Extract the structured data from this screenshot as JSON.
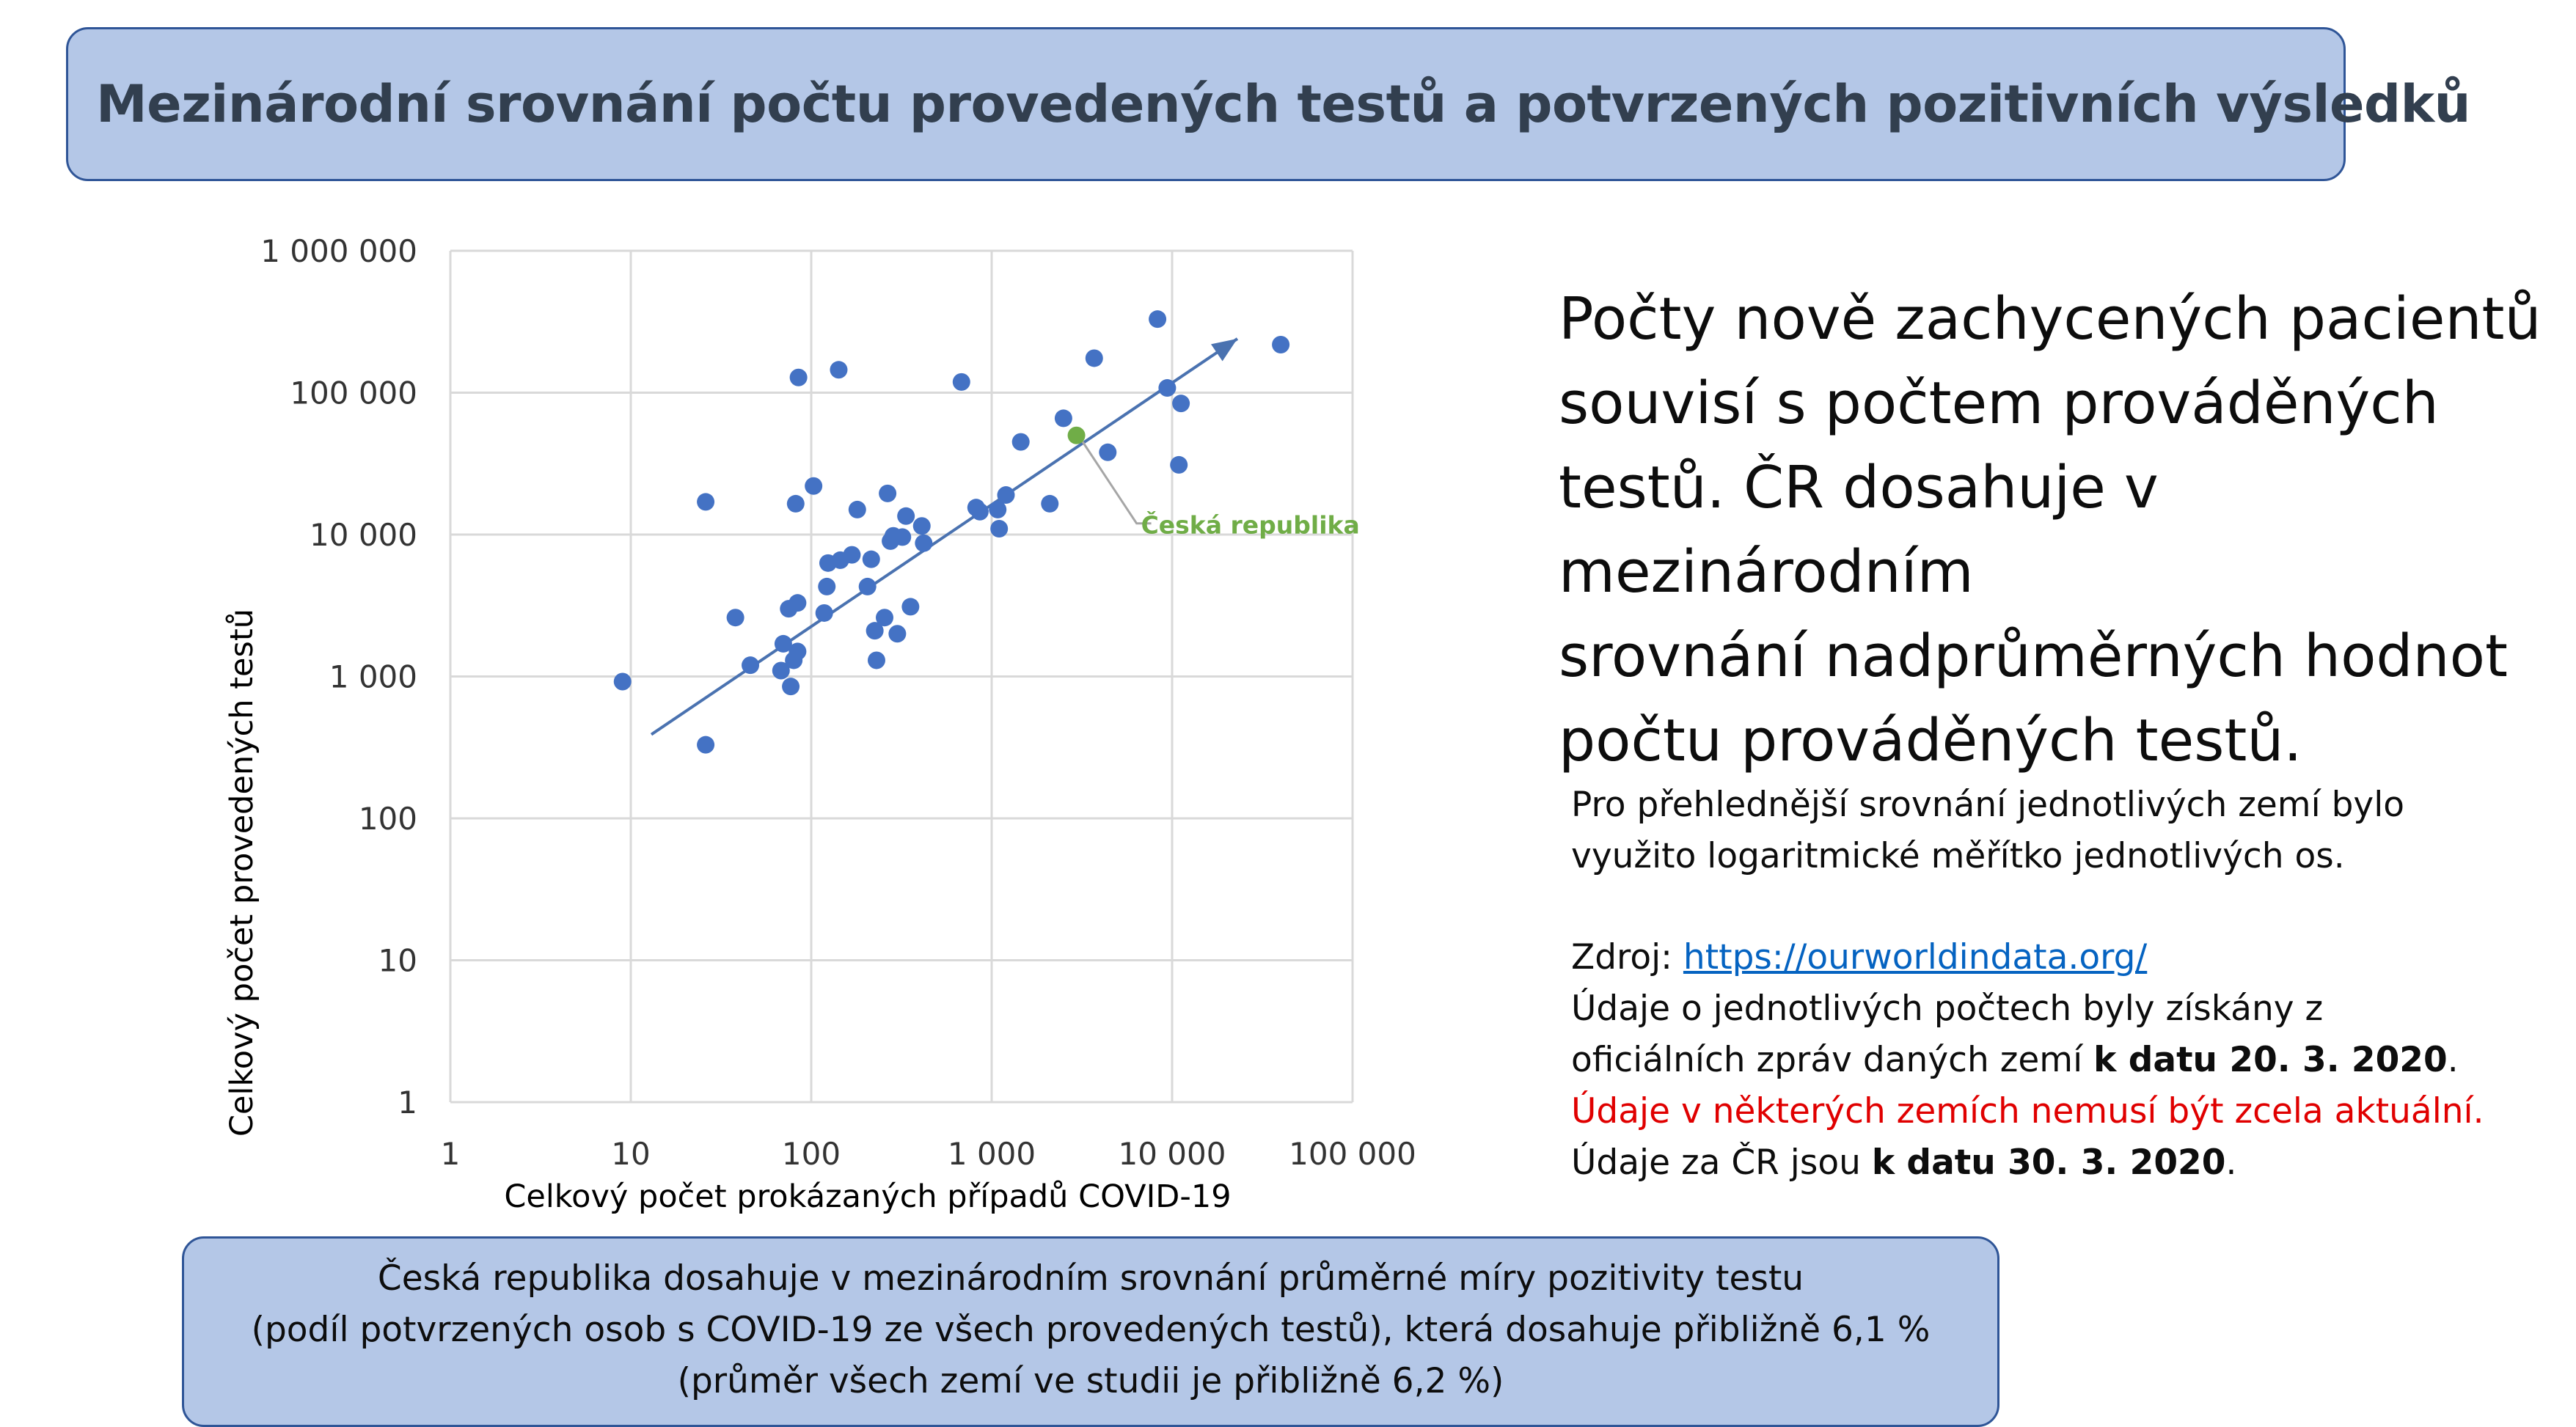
{
  "header": {
    "title": "Mezinárodní srovnání počtu provedených testů a potvrzených pozitivních výsledků"
  },
  "main_text": {
    "lines": [
      "Počty nově zachycených pacientů",
      "souvisí s počtem prováděných",
      "testů. ČR dosahuje v mezinárodním",
      "srovnání nadprůměrných hodnot",
      "počtu prováděných testů."
    ]
  },
  "note_log": {
    "lines": [
      "Pro přehlednější srovnání jednotlivých zemí bylo",
      "využito logaritmické měřítko jednotlivých os."
    ]
  },
  "source": {
    "label": "Zdroj: ",
    "link": "https://ourworldindata.org/",
    "line2": "Údaje o jednotlivých počtech byly získány z",
    "line3_prefix": "oficiálních zpráv daných zemí ",
    "line3_bold": "k datu 20. 3. 2020",
    "line3_suffix": ".",
    "warning": "Údaje v některých zemích nemusí být zcela aktuální.",
    "cz_prefix": "Údaje za ČR jsou ",
    "cz_bold": "k datu 30. 3. 2020",
    "cz_suffix": "."
  },
  "footer": {
    "lines": [
      "Česká republika dosahuje v mezinárodním srovnání průměrné míry pozitivity testu",
      "(podíl potvrzených osob s COVID-19 ze všech provedených testů), která dosahuje přibližně 6,1 %",
      "(průměr všech zemí ve studii je přibližně 6,2 %)"
    ]
  },
  "colors": {
    "point": "#4472c4",
    "highlight": "#70ad47",
    "trend": "#4a72b0",
    "grid": "#d9d9d9",
    "box_fill": "#b4c7e7",
    "box_border": "#2f5597",
    "warning": "#e00000"
  },
  "chart_data": {
    "type": "scatter",
    "xlabel": "Celkový počet prokázaných případů COVID-19",
    "ylabel": "Celkový počet provedených testů",
    "xscale": "log",
    "yscale": "log",
    "xlim": [
      1,
      100000
    ],
    "ylim": [
      1,
      1000000
    ],
    "grid": true,
    "x_ticks": [
      {
        "value": 1,
        "label": "1"
      },
      {
        "value": 10,
        "label": "10"
      },
      {
        "value": 100,
        "label": "100"
      },
      {
        "value": 1000,
        "label": "1 000"
      },
      {
        "value": 10000,
        "label": "10 000"
      },
      {
        "value": 100000,
        "label": "100 000"
      }
    ],
    "y_ticks": [
      {
        "value": 1,
        "label": "1"
      },
      {
        "value": 10,
        "label": "10"
      },
      {
        "value": 100,
        "label": "100"
      },
      {
        "value": 1000,
        "label": "1 000"
      },
      {
        "value": 10000,
        "label": "10 000"
      },
      {
        "value": 100000,
        "label": "100 000"
      },
      {
        "value": 1000000,
        "label": "1 000 000"
      }
    ],
    "points": [
      {
        "x": 9,
        "y": 920
      },
      {
        "x": 26,
        "y": 330
      },
      {
        "x": 26,
        "y": 17000
      },
      {
        "x": 38,
        "y": 2600
      },
      {
        "x": 46,
        "y": 1200
      },
      {
        "x": 68,
        "y": 1100
      },
      {
        "x": 70,
        "y": 1700
      },
      {
        "x": 75,
        "y": 3000
      },
      {
        "x": 77,
        "y": 850
      },
      {
        "x": 80,
        "y": 1300
      },
      {
        "x": 82,
        "y": 16500
      },
      {
        "x": 84,
        "y": 1500
      },
      {
        "x": 84,
        "y": 3300
      },
      {
        "x": 85,
        "y": 128000
      },
      {
        "x": 103,
        "y": 22000
      },
      {
        "x": 118,
        "y": 2800
      },
      {
        "x": 122,
        "y": 4300
      },
      {
        "x": 124,
        "y": 6300
      },
      {
        "x": 142,
        "y": 145000
      },
      {
        "x": 145,
        "y": 6600
      },
      {
        "x": 168,
        "y": 7200
      },
      {
        "x": 180,
        "y": 15000
      },
      {
        "x": 205,
        "y": 4300
      },
      {
        "x": 215,
        "y": 6700
      },
      {
        "x": 225,
        "y": 2100
      },
      {
        "x": 230,
        "y": 1300
      },
      {
        "x": 255,
        "y": 2600
      },
      {
        "x": 265,
        "y": 19500
      },
      {
        "x": 275,
        "y": 9000
      },
      {
        "x": 285,
        "y": 9800
      },
      {
        "x": 300,
        "y": 2000
      },
      {
        "x": 320,
        "y": 9600
      },
      {
        "x": 335,
        "y": 13500
      },
      {
        "x": 355,
        "y": 3100
      },
      {
        "x": 410,
        "y": 11500
      },
      {
        "x": 420,
        "y": 8700
      },
      {
        "x": 680,
        "y": 119000
      },
      {
        "x": 820,
        "y": 15500
      },
      {
        "x": 860,
        "y": 14500
      },
      {
        "x": 1080,
        "y": 15000
      },
      {
        "x": 1100,
        "y": 11000
      },
      {
        "x": 1200,
        "y": 19000
      },
      {
        "x": 1450,
        "y": 45000
      },
      {
        "x": 2100,
        "y": 16500
      },
      {
        "x": 2500,
        "y": 66000
      },
      {
        "x": 3700,
        "y": 175000
      },
      {
        "x": 4400,
        "y": 38000
      },
      {
        "x": 8300,
        "y": 330000
      },
      {
        "x": 9400,
        "y": 108000
      },
      {
        "x": 10900,
        "y": 31000
      },
      {
        "x": 11200,
        "y": 84000
      },
      {
        "x": 40000,
        "y": 218000
      }
    ],
    "highlight": {
      "x": 2950,
      "y": 50000,
      "label": "Česká republika"
    },
    "trendline": {
      "x": [
        13,
        23000
      ],
      "y": [
        390,
        240000
      ]
    }
  }
}
